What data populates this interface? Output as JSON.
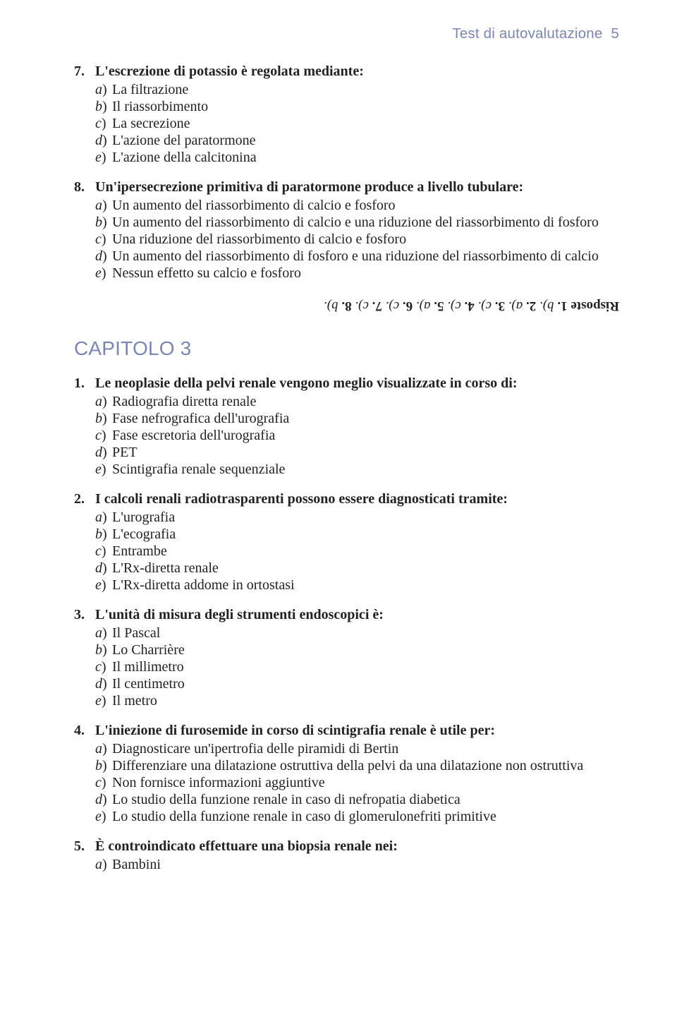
{
  "colors": {
    "header": "#7b86b6",
    "body_text": "#222222",
    "background": "#ffffff"
  },
  "fonts": {
    "body_family": "Times New Roman",
    "header_family": "Arial",
    "body_size_pt": 15,
    "header_size_pt": 15,
    "chapter_size_pt": 21
  },
  "header": {
    "title": "Test di autovalutazione",
    "page_number": "5"
  },
  "questions_top": [
    {
      "number": "7.",
      "stem": "L'escrezione di potassio è regolata mediante:",
      "options": [
        {
          "label": "a",
          "text": "La filtrazione"
        },
        {
          "label": "b",
          "text": "Il riassorbimento"
        },
        {
          "label": "c",
          "text": "La secrezione"
        },
        {
          "label": "d",
          "text": "L'azione del  paratormone"
        },
        {
          "label": "e",
          "text": "L'azione della calcitonina"
        }
      ]
    },
    {
      "number": "8.",
      "stem": "Un'ipersecrezione primitiva di paratormone produce a livello tubulare:",
      "options": [
        {
          "label": "a",
          "text": "Un aumento del riassorbimento di calcio e fosforo"
        },
        {
          "label": "b",
          "text": "Un aumento del riassorbimento di calcio e una riduzione del riassorbimento di fosforo"
        },
        {
          "label": "c",
          "text": "Una riduzione del riassorbimento di calcio e fosforo"
        },
        {
          "label": "d",
          "text": "Un aumento del riassorbimento di fosforo e una riduzione del riassorbimento di calcio"
        },
        {
          "label": "e",
          "text": "Nessun effetto su calcio e fosforo"
        }
      ]
    }
  ],
  "answers": {
    "label": "Risposte",
    "items": [
      {
        "n": "1.",
        "l": "b)."
      },
      {
        "n": "2.",
        "l": "a)."
      },
      {
        "n": "3.",
        "l": "c)."
      },
      {
        "n": "4.",
        "l": "c)."
      },
      {
        "n": "5.",
        "l": "a)."
      },
      {
        "n": "6.",
        "l": "c)."
      },
      {
        "n": "7.",
        "l": "c)."
      },
      {
        "n": "8.",
        "l": "b)."
      }
    ]
  },
  "chapter_heading": "CAPITOLO 3",
  "questions_bottom": [
    {
      "number": "1.",
      "stem": "Le neoplasie della pelvi renale vengono meglio visualizzate in corso di:",
      "options": [
        {
          "label": "a",
          "text": "Radiografia diretta renale"
        },
        {
          "label": "b",
          "text": "Fase nefrografica dell'urografia"
        },
        {
          "label": "c",
          "text": "Fase escretoria dell'urografia"
        },
        {
          "label": "d",
          "text": "PET"
        },
        {
          "label": "e",
          "text": "Scintigrafia renale sequenziale"
        }
      ]
    },
    {
      "number": "2.",
      "stem": "I calcoli renali radiotrasparenti possono essere diagnosticati tramite:",
      "options": [
        {
          "label": "a",
          "text": "L'urografia"
        },
        {
          "label": "b",
          "text": "L'ecografia"
        },
        {
          "label": "c",
          "text": "Entrambe"
        },
        {
          "label": "d",
          "text": "L'Rx-diretta renale"
        },
        {
          "label": "e",
          "text": "L'Rx-diretta addome in ortostasi"
        }
      ]
    },
    {
      "number": "3.",
      "stem": "L'unità di misura degli strumenti endoscopici è:",
      "options": [
        {
          "label": "a",
          "text": "Il Pascal"
        },
        {
          "label": "b",
          "text": "Lo Charrière"
        },
        {
          "label": "c",
          "text": "Il millimetro"
        },
        {
          "label": "d",
          "text": "Il centimetro"
        },
        {
          "label": "e",
          "text": "Il metro"
        }
      ]
    },
    {
      "number": "4.",
      "stem": "L'iniezione di furosemide in corso di scintigrafia renale è utile per:",
      "options": [
        {
          "label": "a",
          "text": "Diagnosticare un'ipertrofia delle piramidi di Bertin"
        },
        {
          "label": "b",
          "text": "Differenziare una dilatazione ostruttiva della pelvi da una dilatazione non ostruttiva"
        },
        {
          "label": "c",
          "text": "Non fornisce informazioni aggiuntive"
        },
        {
          "label": "d",
          "text": "Lo studio della funzione renale in caso di nefropatia diabetica"
        },
        {
          "label": "e",
          "text": "Lo studio della funzione renale in caso di glomerulonefriti primitive"
        }
      ]
    },
    {
      "number": "5.",
      "stem": "È controindicato effettuare una biopsia renale nei:",
      "options": [
        {
          "label": "a",
          "text": "Bambini"
        }
      ]
    }
  ]
}
